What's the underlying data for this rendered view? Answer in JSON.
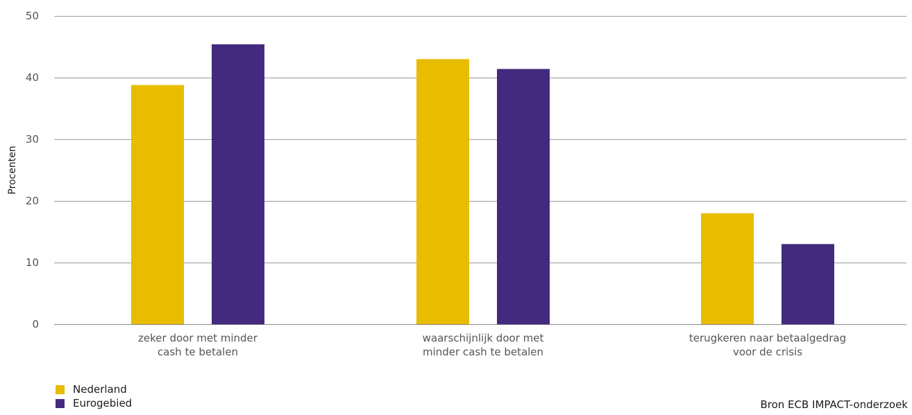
{
  "chart_data": {
    "type": "bar",
    "categories": [
      [
        "zeker door met minder",
        "cash te betalen"
      ],
      [
        "waarschijnlijk door met",
        "minder cash te betalen"
      ],
      [
        "terugkeren naar betaalgedrag",
        "voor de crisis"
      ]
    ],
    "series": [
      {
        "name": "Nederland",
        "color": "#E8BC00",
        "values": [
          38.8,
          43.0,
          18.0
        ]
      },
      {
        "name": "Eurogebied",
        "color": "#432A7E",
        "values": [
          45.4,
          41.4,
          13.0
        ]
      }
    ],
    "ylabel": "Procenten",
    "ylim": [
      0,
      50
    ],
    "yticks": [
      0,
      10,
      20,
      30,
      40,
      50
    ],
    "grid": true,
    "legend_position": "bottom-left"
  },
  "source": "Bron ECB IMPACT-onderzoek"
}
